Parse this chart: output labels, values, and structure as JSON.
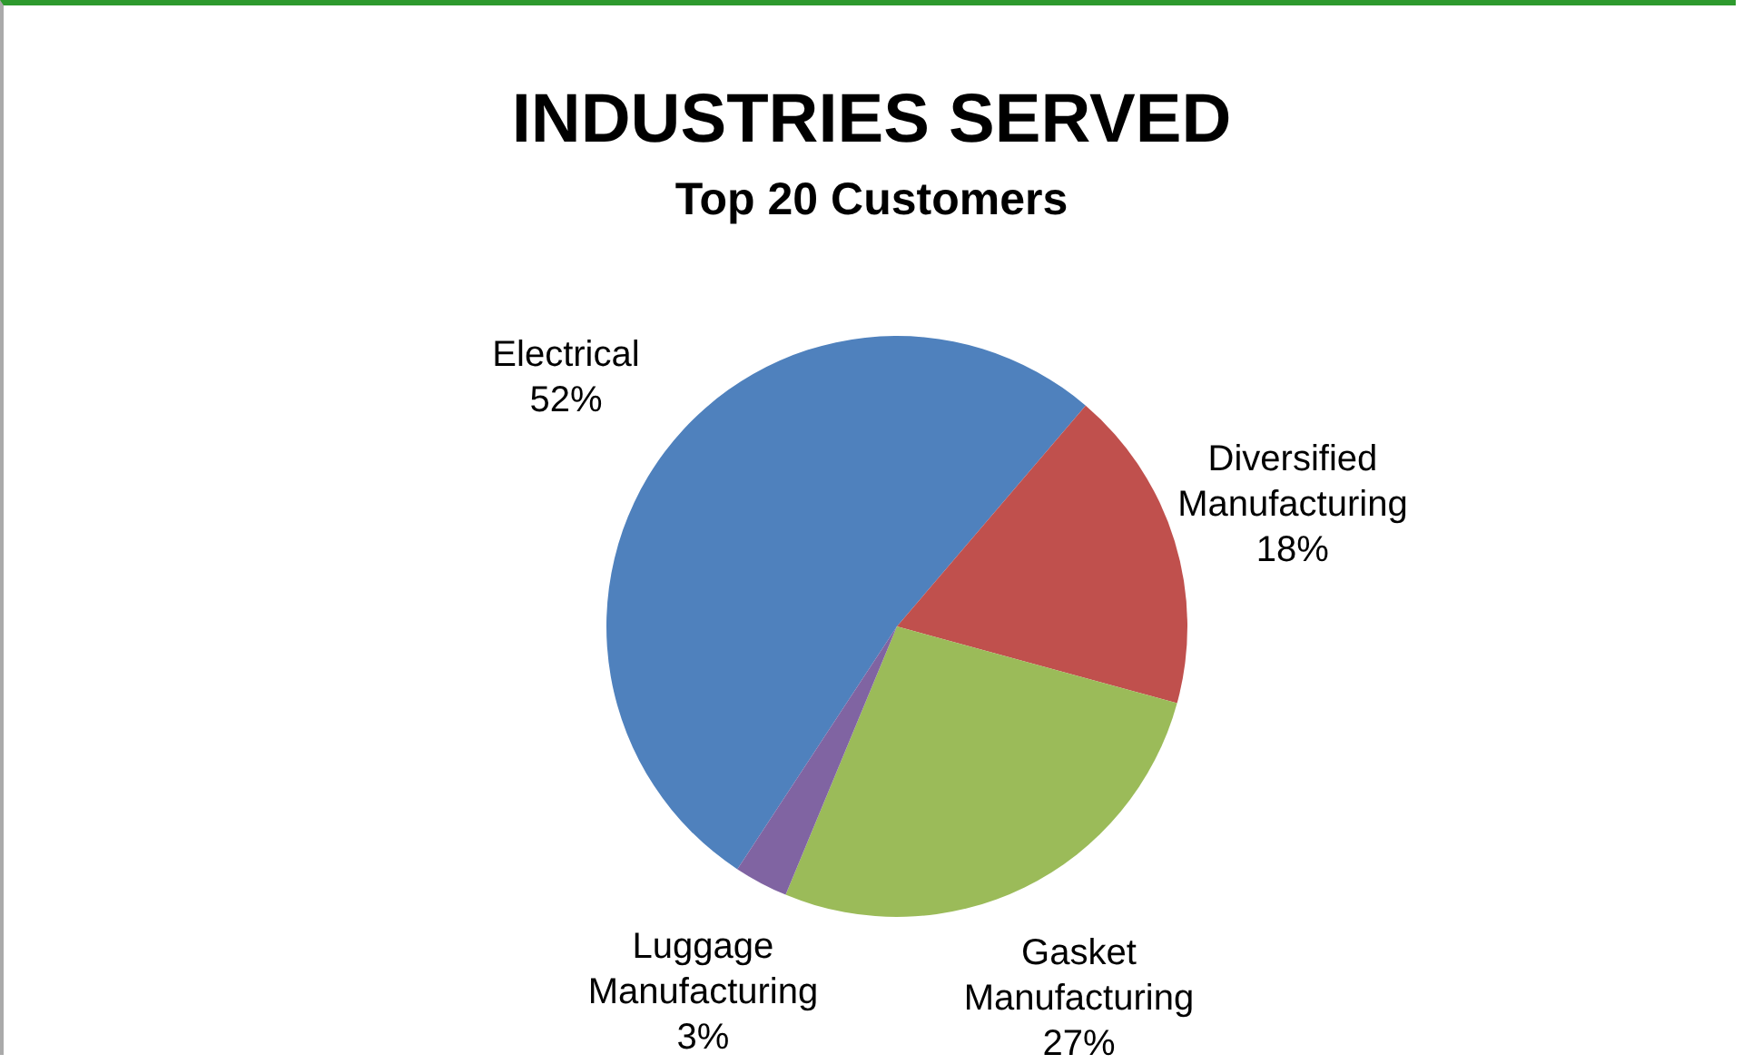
{
  "chart_data": {
    "type": "pie",
    "title": "INDUSTRIES SERVED",
    "subtitle": "Top 20 Customers",
    "categories": [
      "Electrical",
      "Diversified Manufacturing",
      "Gasket Manufacturing",
      "Luggage Manufacturing"
    ],
    "values": [
      52,
      18,
      27,
      3
    ],
    "colors": [
      "#4f81bd",
      "#c0504d",
      "#9bbb59",
      "#8064a2"
    ],
    "value_labels": [
      "52%",
      "18%",
      "27%",
      "3%"
    ],
    "legend": false
  }
}
